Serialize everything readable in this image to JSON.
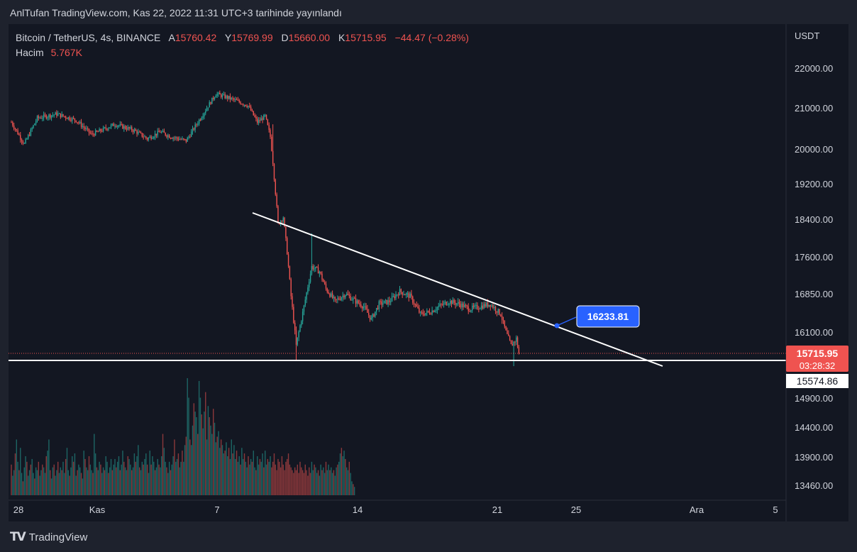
{
  "header": "AnlTufan TradingView.com, Kas 22, 2022 11:31 UTC+3 tarihinde yayınlandı",
  "legend": {
    "symbol": "Bitcoin / TetherUS, 4s, BINANCE",
    "o_label": "A",
    "o_value": "15760.42",
    "h_label": "Y",
    "h_value": "15769.99",
    "l_label": "D",
    "l_value": "15660.00",
    "c_label": "K",
    "c_value": "15715.95",
    "change": "−44.47 (−0.28%)",
    "volume_label": "Hacim",
    "volume_value": "5.767K"
  },
  "footer": {
    "brand": "TradingView",
    "logo": "TV"
  },
  "colors": {
    "up": "#26a69a",
    "down": "#ef5350",
    "panel": "#131722",
    "text": "#d1d4dc",
    "callout": "#2962ff"
  },
  "chart_data": {
    "type": "candlestick",
    "currency": "USDT",
    "y_ticks": [
      "22000.00",
      "21000.00",
      "20000.00",
      "19200.00",
      "18400.00",
      "17600.00",
      "16850.00",
      "16100.00",
      "14900.00",
      "14400.00",
      "13900.00",
      "13460.00"
    ],
    "x_ticks": [
      "28",
      "Kas",
      "7",
      "14",
      "21",
      "25",
      "Ara",
      "5"
    ],
    "price_label": {
      "value": "15715.95",
      "countdown": "03:28:32"
    },
    "support_label": "15574.86",
    "callout": "16233.81",
    "anchors": [
      {
        "t": 0,
        "p": 20650
      },
      {
        "t": 10,
        "p": 20120
      },
      {
        "t": 20,
        "p": 20750
      },
      {
        "t": 35,
        "p": 20850
      },
      {
        "t": 50,
        "p": 20700
      },
      {
        "t": 62,
        "p": 20350
      },
      {
        "t": 80,
        "p": 20600
      },
      {
        "t": 95,
        "p": 20450
      },
      {
        "t": 105,
        "p": 20250
      },
      {
        "t": 115,
        "p": 20420
      },
      {
        "t": 123,
        "p": 20300
      },
      {
        "t": 135,
        "p": 20200
      },
      {
        "t": 145,
        "p": 20700
      },
      {
        "t": 158,
        "p": 21350
      },
      {
        "t": 168,
        "p": 21250
      },
      {
        "t": 176,
        "p": 21150
      },
      {
        "t": 183,
        "p": 21050
      },
      {
        "t": 190,
        "p": 20650
      },
      {
        "t": 196,
        "p": 20800
      },
      {
        "t": 200,
        "p": 20300
      },
      {
        "t": 202,
        "p": 19700
      },
      {
        "t": 206,
        "p": 18300
      },
      {
        "t": 210,
        "p": 18450
      },
      {
        "t": 213,
        "p": 17700
      },
      {
        "t": 216,
        "p": 16800
      },
      {
        "t": 220,
        "p": 15850
      },
      {
        "t": 226,
        "p": 16600
      },
      {
        "t": 232,
        "p": 17400
      },
      {
        "t": 238,
        "p": 17300
      },
      {
        "t": 243,
        "p": 16950
      },
      {
        "t": 250,
        "p": 16700
      },
      {
        "t": 258,
        "p": 16850
      },
      {
        "t": 266,
        "p": 16700
      },
      {
        "t": 272,
        "p": 16600
      },
      {
        "t": 278,
        "p": 16350
      },
      {
        "t": 284,
        "p": 16650
      },
      {
        "t": 292,
        "p": 16700
      },
      {
        "t": 300,
        "p": 16900
      },
      {
        "t": 308,
        "p": 16800
      },
      {
        "t": 316,
        "p": 16450
      },
      {
        "t": 324,
        "p": 16500
      },
      {
        "t": 330,
        "p": 16600
      },
      {
        "t": 338,
        "p": 16700
      },
      {
        "t": 346,
        "p": 16650
      },
      {
        "t": 354,
        "p": 16550
      },
      {
        "t": 362,
        "p": 16600
      },
      {
        "t": 370,
        "p": 16650
      },
      {
        "t": 378,
        "p": 16450
      },
      {
        "t": 382,
        "p": 16100
      },
      {
        "t": 386,
        "p": 15850
      },
      {
        "t": 390,
        "p": 15980
      },
      {
        "t": 392,
        "p": 15716
      }
    ],
    "volume": [
      11,
      7,
      9,
      15,
      20,
      12,
      9,
      17,
      8,
      5,
      10,
      14,
      12,
      7,
      9,
      11,
      13,
      8,
      6,
      10,
      9,
      12,
      7,
      9,
      11,
      10,
      8,
      14,
      16,
      20,
      9,
      6,
      10,
      11,
      7,
      9,
      12,
      8,
      10,
      9,
      12,
      8,
      13,
      17,
      9,
      7,
      10,
      14,
      12,
      15,
      7,
      9,
      11,
      10,
      8,
      6,
      16,
      13,
      10,
      9,
      14,
      11,
      9,
      8,
      22,
      15,
      10,
      9,
      12,
      11,
      8,
      10,
      9,
      14,
      12,
      8,
      10,
      13,
      9,
      11,
      13,
      10,
      12,
      14,
      9,
      11,
      16,
      12,
      10,
      9,
      14,
      13,
      11,
      9,
      10,
      15,
      12,
      14,
      18,
      10,
      9,
      12,
      11,
      13,
      15,
      11,
      8,
      16,
      11,
      14,
      12,
      9,
      10,
      13,
      11,
      10,
      14,
      22,
      17,
      12,
      10,
      8,
      12,
      9,
      11,
      14,
      20,
      12,
      13,
      15,
      10,
      12,
      16,
      12,
      18,
      21,
      42,
      35,
      20,
      18,
      25,
      33,
      30,
      28,
      22,
      41,
      35,
      29,
      24,
      30,
      37,
      20,
      32,
      28,
      25,
      22,
      31,
      26,
      19,
      21,
      23,
      17,
      20,
      18,
      15,
      16,
      19,
      14,
      17,
      13,
      20,
      15,
      18,
      13,
      16,
      12,
      14,
      11,
      17,
      13,
      15,
      12,
      10,
      14,
      11,
      13,
      12,
      16,
      10,
      9,
      14,
      11,
      13,
      12,
      15,
      10,
      16,
      11,
      13,
      12,
      14,
      10,
      12,
      15,
      11,
      9,
      13,
      12,
      10,
      14,
      11,
      9,
      12,
      13,
      15,
      11,
      10,
      9,
      8,
      10,
      9,
      11,
      8,
      12,
      10,
      9,
      8,
      11,
      9,
      7,
      10,
      8,
      12,
      9,
      11,
      10,
      8,
      9,
      7,
      11,
      9,
      10,
      8,
      12,
      9,
      11,
      9,
      10,
      8,
      9,
      7,
      10,
      11,
      12,
      15,
      17,
      14,
      16,
      13,
      10,
      9,
      12,
      8,
      5,
      4,
      3
    ]
  }
}
